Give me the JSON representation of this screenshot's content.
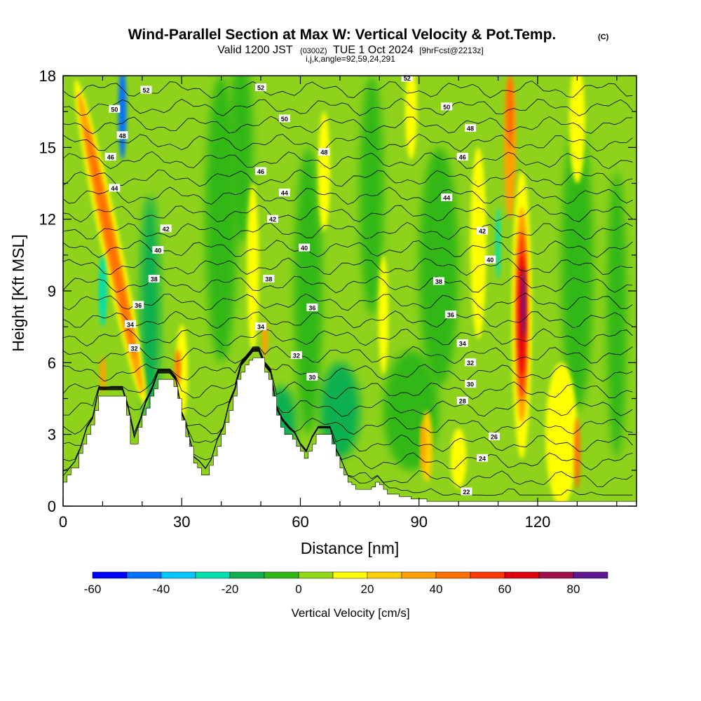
{
  "chart_data": {
    "type": "heatmap",
    "title": "Wind-Parallel Section at Max W: Vertical Velocity & Pot.Temp.",
    "title_mark": "(C)",
    "subtitle_main": "Valid 1200 JST",
    "subtitle_utc": "(0300Z)",
    "subtitle_date": "TUE 1 Oct 2024",
    "subtitle_fcst": "[9hrFcst@2213z]",
    "subtitle_params": "i,j,k,angle=92,59,24,291",
    "xlabel": "Distance [nm]",
    "ylabel": "Height [Kft MSL]",
    "xlim": [
      0,
      145
    ],
    "ylim": [
      0,
      18
    ],
    "x_ticks": [
      "0",
      "30",
      "60",
      "90",
      "120"
    ],
    "x_tick_values": [
      0,
      30,
      60,
      90,
      120
    ],
    "y_ticks": [
      "0",
      "3",
      "6",
      "9",
      "12",
      "15",
      "18"
    ],
    "y_tick_values": [
      0,
      3,
      6,
      9,
      12,
      15,
      18
    ],
    "colorbar": {
      "title": "Vertical Velocity [cm/s]",
      "tick_labels": [
        "-60",
        "-40",
        "-20",
        "0",
        "20",
        "40",
        "60",
        "80"
      ],
      "tick_values": [
        -60,
        -40,
        -20,
        0,
        20,
        40,
        60,
        80
      ],
      "range": [
        -60,
        90
      ],
      "step": 10,
      "colors": [
        "#0000ff",
        "#0070ff",
        "#00c8ff",
        "#00e0b0",
        "#10b050",
        "#30b818",
        "#90d818",
        "#ffff00",
        "#ffd000",
        "#ffa000",
        "#ff7000",
        "#ff3800",
        "#e00010",
        "#a0104a",
        "#601890"
      ]
    },
    "theta_contour_labels": [
      {
        "value": "52",
        "x": 21,
        "y": 17.4
      },
      {
        "value": "52",
        "x": 50,
        "y": 17.5
      },
      {
        "value": "52",
        "x": 87,
        "y": 17.9
      },
      {
        "value": "50",
        "x": 13,
        "y": 16.6
      },
      {
        "value": "50",
        "x": 56,
        "y": 16.2
      },
      {
        "value": "50",
        "x": 97,
        "y": 16.7
      },
      {
        "value": "48",
        "x": 15,
        "y": 15.5
      },
      {
        "value": "48",
        "x": 66,
        "y": 14.8
      },
      {
        "value": "48",
        "x": 103,
        "y": 15.8
      },
      {
        "value": "46",
        "x": 12,
        "y": 14.6
      },
      {
        "value": "46",
        "x": 50,
        "y": 14.0
      },
      {
        "value": "46",
        "x": 101,
        "y": 14.6
      },
      {
        "value": "44",
        "x": 13,
        "y": 13.3
      },
      {
        "value": "44",
        "x": 56,
        "y": 13.1
      },
      {
        "value": "44",
        "x": 97,
        "y": 12.9
      },
      {
        "value": "42",
        "x": 26,
        "y": 11.6
      },
      {
        "value": "42",
        "x": 53,
        "y": 12.0
      },
      {
        "value": "42",
        "x": 106,
        "y": 11.5
      },
      {
        "value": "40",
        "x": 24,
        "y": 10.7
      },
      {
        "value": "40",
        "x": 61,
        "y": 10.8
      },
      {
        "value": "40",
        "x": 108,
        "y": 10.3
      },
      {
        "value": "38",
        "x": 23,
        "y": 9.5
      },
      {
        "value": "38",
        "x": 52,
        "y": 9.5
      },
      {
        "value": "38",
        "x": 95,
        "y": 9.4
      },
      {
        "value": "36",
        "x": 19,
        "y": 8.4
      },
      {
        "value": "36",
        "x": 63,
        "y": 8.3
      },
      {
        "value": "36",
        "x": 98,
        "y": 8.0
      },
      {
        "value": "34",
        "x": 17,
        "y": 7.6
      },
      {
        "value": "34",
        "x": 50,
        "y": 7.5
      },
      {
        "value": "34",
        "x": 101,
        "y": 6.8
      },
      {
        "value": "32",
        "x": 18,
        "y": 6.6
      },
      {
        "value": "32",
        "x": 59,
        "y": 6.3
      },
      {
        "value": "32",
        "x": 103,
        "y": 6.0
      },
      {
        "value": "30",
        "x": 63,
        "y": 5.4
      },
      {
        "value": "30",
        "x": 103,
        "y": 5.1
      },
      {
        "value": "28",
        "x": 101,
        "y": 4.4
      },
      {
        "value": "26",
        "x": 109,
        "y": 2.9
      },
      {
        "value": "24",
        "x": 106,
        "y": 2.0
      },
      {
        "value": "22",
        "x": 102,
        "y": 0.6
      }
    ],
    "terrain_profile": {
      "x": [
        0,
        1,
        2,
        4,
        5,
        6,
        7,
        8,
        9,
        10,
        11,
        12,
        13,
        14,
        15,
        16,
        17,
        18,
        19,
        20,
        21,
        22,
        23,
        24,
        25,
        26,
        27,
        28,
        29,
        30,
        31,
        32,
        33,
        34,
        35,
        36,
        37,
        38,
        39,
        40,
        41,
        42,
        43,
        44,
        45,
        46,
        47,
        48,
        49,
        50,
        51,
        52,
        53,
        54,
        55,
        56,
        57,
        58,
        59,
        60,
        61,
        62,
        63,
        64,
        65,
        66,
        67,
        68,
        69,
        70,
        71,
        72,
        73,
        74,
        75,
        76,
        77,
        78,
        79,
        80,
        81,
        82,
        83,
        84,
        85,
        86,
        87,
        88,
        89,
        90,
        91,
        92,
        93,
        94,
        95,
        96,
        97,
        98,
        99,
        100,
        145
      ],
      "y": [
        1.0,
        1.3,
        1.6,
        2.2,
        2.6,
        3.0,
        3.4,
        4.0,
        4.6,
        4.6,
        4.6,
        4.6,
        4.6,
        4.6,
        4.6,
        3.8,
        2.6,
        2.6,
        3.3,
        3.8,
        4.1,
        4.6,
        4.9,
        5.3,
        5.3,
        5.3,
        5.3,
        5.0,
        4.5,
        3.6,
        2.9,
        2.5,
        1.8,
        1.6,
        1.3,
        1.3,
        1.7,
        2.1,
        2.5,
        3.0,
        3.5,
        4.0,
        4.6,
        5.3,
        5.6,
        5.9,
        6.1,
        6.2,
        6.2,
        6.2,
        5.6,
        5.3,
        4.6,
        3.8,
        3.3,
        3.0,
        3.0,
        2.8,
        2.5,
        2.3,
        2.0,
        2.3,
        2.6,
        3.0,
        3.0,
        3.0,
        3.0,
        2.6,
        2.1,
        1.6,
        1.3,
        1.0,
        0.9,
        0.7,
        0.7,
        0.7,
        0.7,
        0.8,
        1.0,
        0.9,
        0.7,
        0.5,
        0.5,
        0.5,
        0.4,
        0.4,
        0.4,
        0.3,
        0.3,
        0.3,
        0.3,
        0.2,
        0.2,
        0.2,
        0.2,
        0.2,
        0.2,
        0.2,
        0.2,
        0.2,
        0.2
      ]
    }
  }
}
